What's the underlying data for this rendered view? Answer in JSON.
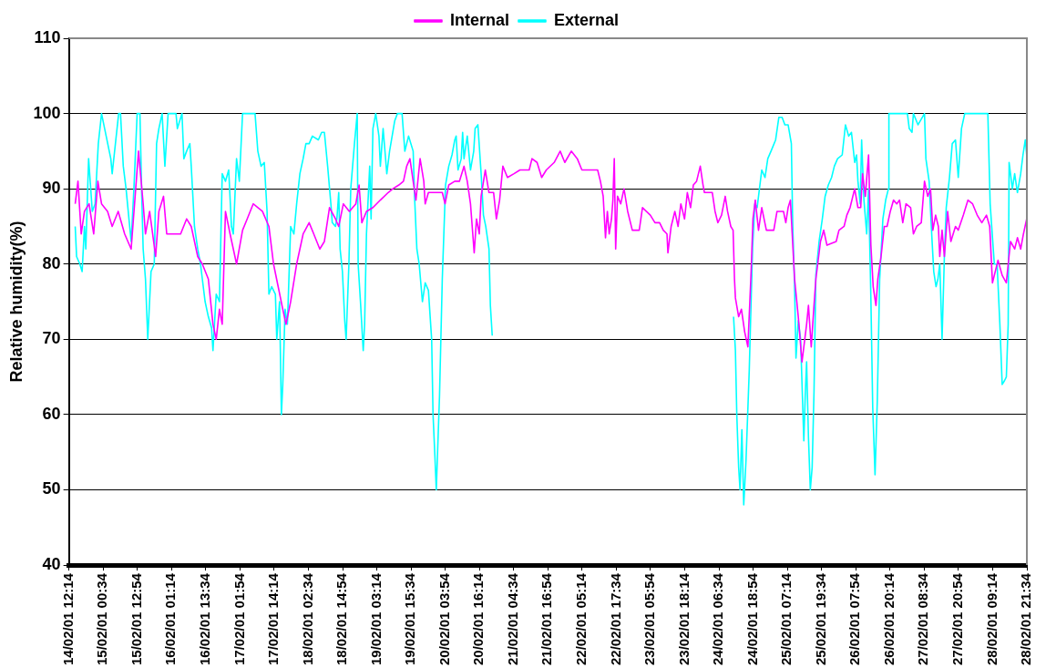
{
  "chart_data": {
    "type": "line",
    "ylabel": "Relative humidity(%)",
    "ylim": [
      40,
      110
    ],
    "yticks": [
      40,
      50,
      60,
      70,
      80,
      90,
      100,
      110
    ],
    "grid": "y",
    "legend": "top",
    "marker": "none",
    "line_style": "solid",
    "xlim": [
      "--02-14T12:14",
      "--02-28T21:34"
    ],
    "xticks": [
      {
        "value": "--02-14T12:14",
        "label": "14/02/01 12:14"
      },
      {
        "value": "--02-15T00:34",
        "label": "15/02/01 00:34"
      },
      {
        "value": "--02-15T12:54",
        "label": "15/02/01 12:54"
      },
      {
        "value": "--02-16T01:14",
        "label": "16/02/01 01:14"
      },
      {
        "value": "--02-16T13:34",
        "label": "16/02/01 13:34"
      },
      {
        "value": "--02-17T01:54",
        "label": "17/02/01 01:54"
      },
      {
        "value": "--02-17T14:14",
        "label": "17/02/01 14:14"
      },
      {
        "value": "--02-18T02:34",
        "label": "18/02/01 02:34"
      },
      {
        "value": "--02-18T14:54",
        "label": "18/02/01 14:54"
      },
      {
        "value": "--02-19T03:14",
        "label": "19/02/01 03:14"
      },
      {
        "value": "--02-19T15:34",
        "label": "19/02/01 15:34"
      },
      {
        "value": "--02-20T03:54",
        "label": "20/02/01 03:54"
      },
      {
        "value": "--02-20T16:14",
        "label": "20/02/01 16:14"
      },
      {
        "value": "--02-21T04:34",
        "label": "21/02/01 04:34"
      },
      {
        "value": "--02-21T16:54",
        "label": "21/02/01 16:54"
      },
      {
        "value": "--02-22T05:14",
        "label": "22/02/01 05:14"
      },
      {
        "value": "--02-22T17:34",
        "label": "22/02/01 17:34"
      },
      {
        "value": "--02-23T05:54",
        "label": "23/02/01 05:54"
      },
      {
        "value": "--02-23T18:14",
        "label": "23/02/01 18:14"
      },
      {
        "value": "--02-24T06:34",
        "label": "24/02/01 06:34"
      },
      {
        "value": "--02-24T18:54",
        "label": "24/02/01 18:54"
      },
      {
        "value": "--02-25T07:14",
        "label": "25/02/01 07:14"
      },
      {
        "value": "--02-25T19:34",
        "label": "25/02/01 19:34"
      },
      {
        "value": "--02-26T07:54",
        "label": "26/02/01 07:54"
      },
      {
        "value": "--02-26T20:14",
        "label": "26/02/01 20:14"
      },
      {
        "value": "--02-27T08:34",
        "label": "27/02/01 08:34"
      },
      {
        "value": "--02-27T20:54",
        "label": "27/02/01 20:54"
      },
      {
        "value": "--02-28T09:14",
        "label": "28/02/01 09:14"
      },
      {
        "value": "--02-28T21:34",
        "label": "28/02/01 21:34"
      }
    ],
    "series": [
      {
        "name": "Internal",
        "color": "#ff00ff",
        "x": [
          "--02-14T14:30",
          "--02-14T15:30",
          "--02-14T16:40",
          "--02-14T17:50",
          "--02-14T19:30",
          "--02-14T21:10",
          "--02-14T22:40",
          "--02-15T00:00",
          "--02-15T02:10",
          "--02-15T03:50",
          "--02-15T06:00",
          "--02-15T08:20",
          "--02-15T10:40",
          "--02-15T13:20",
          "--02-15T15:00",
          "--02-15T15:50",
          "--02-15T17:20",
          "--02-15T19:30",
          "--02-15T20:40",
          "--02-15T22:20",
          "--02-15T23:30",
          "--02-16T01:10",
          "--02-16T04:30",
          "--02-16T06:40",
          "--02-16T08:20",
          "--02-16T10:40",
          "--02-16T12:20",
          "--02-16T14:30",
          "--02-16T16:10",
          "--02-16T17:20",
          "--02-16T18:30",
          "--02-16T19:30",
          "--02-16T20:40",
          "--02-16T22:20",
          "--02-17T00:40",
          "--02-17T02:50",
          "--02-17T04:30",
          "--02-17T06:40",
          "--02-17T10:00",
          "--02-17T12:20",
          "--02-17T14:00",
          "--02-17T15:40",
          "--02-17T17:20",
          "--02-17T18:30",
          "--02-17T20:10",
          "--02-17T22:20",
          "--02-18T00:40",
          "--02-18T02:50",
          "--02-18T04:30",
          "--02-18T06:40",
          "--02-18T08:20",
          "--02-18T10:10",
          "--02-18T12:20",
          "--02-18T13:30",
          "--02-18T15:10",
          "--02-18T17:20",
          "--02-18T19:40",
          "--02-18T20:50",
          "--02-18T21:50",
          "--02-18T23:30",
          "--02-19T01:50",
          "--02-19T04:30",
          "--02-19T07:20",
          "--02-19T09:00",
          "--02-19T11:10",
          "--02-19T12:50",
          "--02-19T14:00",
          "--02-19T15:10",
          "--02-19T16:20",
          "--02-19T17:20",
          "--02-19T18:50",
          "--02-19T20:10",
          "--02-19T20:40",
          "--02-19T21:50",
          "--02-20T00:40",
          "--02-20T02:50",
          "--02-20T03:50",
          "--02-20T05:10",
          "--02-20T07:20",
          "--02-20T09:00",
          "--02-20T10:40",
          "--02-20T11:50",
          "--02-20T13:00",
          "--02-20T14:20",
          "--02-20T15:10",
          "--02-20T16:10",
          "--02-20T16:50",
          "--02-20T18:20",
          "--02-20T19:40",
          "--02-20T21:20",
          "--02-20T22:20",
          "--02-20T23:30",
          "--02-21T00:40",
          "--02-21T02:20",
          "--02-21T04:40",
          "--02-21T06:50",
          "--02-21T10:10",
          "--02-21T11:10",
          "--02-21T13:00",
          "--02-21T14:40",
          "--02-21T16:20",
          "--02-21T19:10",
          "--02-21T21:20",
          "--02-21T23:00",
          "--02-22T01:20",
          "--02-22T03:30",
          "--02-22T05:10",
          "--02-22T10:50",
          "--02-22T11:50",
          "--02-22T12:50",
          "--02-22T13:40",
          "--02-22T14:20",
          "--02-22T15:00",
          "--02-22T15:50",
          "--02-22T16:20",
          "--02-22T16:50",
          "--02-22T17:20",
          "--02-22T18:00",
          "--02-22T19:10",
          "--02-22T20:20",
          "--02-22T21:40",
          "--02-22T23:20",
          "--02-23T00:40",
          "--02-23T01:50",
          "--02-23T03:00",
          "--02-23T05:50",
          "--02-23T07:30",
          "--02-23T09:10",
          "--02-23T10:30",
          "--02-23T11:50",
          "--02-23T12:10",
          "--02-23T13:20",
          "--02-23T14:40",
          "--02-23T15:50",
          "--02-23T16:50",
          "--02-23T18:10",
          "--02-23T19:10",
          "--02-23T20:20",
          "--02-23T21:20",
          "--02-23T22:30",
          "--02-23T23:50",
          "--02-24T00:50",
          "--02-24T01:20",
          "--02-24T04:10",
          "--02-24T05:10",
          "--02-24T06:10",
          "--02-24T07:30",
          "--02-24T08:50",
          "--02-24T09:40",
          "--02-24T10:50",
          "--02-24T11:40",
          "--02-24T12:10",
          "--02-24T12:30",
          "--02-24T13:40",
          "--02-24T14:40",
          "--02-24T15:50",
          "--02-24T17:00",
          "--02-24T18:10",
          "--02-24T18:50",
          "--02-24T19:40",
          "--02-24T20:50",
          "--02-24T22:00",
          "--02-24T23:40",
          "--02-25T02:20",
          "--02-25T03:30",
          "--02-25T05:50",
          "--02-25T06:40",
          "--02-25T07:30",
          "--02-25T08:20",
          "--02-25T09:50",
          "--02-25T11:10",
          "--02-25T12:30",
          "--02-25T14:10",
          "--02-25T14:50",
          "--02-25T15:50",
          "--02-25T16:50",
          "--02-25T17:30",
          "--02-25T18:20",
          "--02-25T19:10",
          "--02-25T20:20",
          "--02-25T21:30",
          "--02-26T00:50",
          "--02-26T01:50",
          "--02-26T03:40",
          "--02-26T04:40",
          "--02-26T05:50",
          "--02-26T07:30",
          "--02-26T08:40",
          "--02-26T09:40",
          "--02-26T10:20",
          "--02-26T11:20",
          "--02-26T12:30",
          "--02-26T13:20",
          "--02-26T14:10",
          "--02-26T15:10",
          "--02-26T15:50",
          "--02-26T17:00",
          "--02-26T18:10",
          "--02-26T19:10",
          "--02-26T20:20",
          "--02-26T21:30",
          "--02-26T22:40",
          "--02-26T23:40",
          "--02-27T00:50",
          "--02-27T02:00",
          "--02-27T03:40",
          "--02-27T04:40",
          "--02-27T05:50",
          "--02-27T07:30",
          "--02-27T08:40",
          "--02-27T09:50",
          "--02-27T10:50",
          "--02-27T11:40",
          "--02-27T12:40",
          "--02-27T13:40",
          "--02-27T14:10",
          "--02-27T15:00",
          "--02-27T15:50",
          "--02-27T17:00",
          "--02-27T18:10",
          "--02-27T19:50",
          "--02-27T20:50",
          "--02-27T22:40",
          "--02-28T00:20",
          "--02-28T02:00",
          "--02-28T03:40",
          "--02-28T05:20",
          "--02-28T07:00",
          "--02-28T08:10",
          "--02-28T09:10",
          "--02-28T11:10",
          "--02-28T12:40",
          "--02-28T14:10",
          "--02-28T15:40",
          "--02-28T17:10",
          "--02-28T18:10",
          "--02-28T19:20",
          "--02-28T20:20",
          "--02-28T21:30"
        ],
        "values": [
          88,
          91,
          84,
          87,
          88,
          84,
          91,
          88,
          87,
          85,
          87,
          84,
          82,
          95,
          88,
          84,
          87,
          81,
          87,
          89,
          84,
          84,
          84,
          86,
          85,
          81,
          80,
          78,
          72,
          70,
          74,
          72,
          87,
          84,
          80,
          84.5,
          86,
          88,
          87,
          85,
          80,
          77,
          74,
          72,
          75,
          80,
          84,
          85.5,
          84,
          82,
          83,
          87.5,
          86,
          85,
          88,
          87,
          88,
          90.5,
          85.5,
          87,
          87.5,
          88.5,
          89.5,
          90,
          90.5,
          91,
          93,
          94,
          91,
          88.5,
          94,
          91,
          88,
          89.5,
          89.5,
          89.5,
          88,
          90.5,
          91,
          91,
          93,
          91,
          88,
          81.5,
          86,
          84,
          89,
          92.5,
          89.5,
          89.5,
          86,
          88.5,
          93,
          91.5,
          92,
          92.5,
          92.5,
          94,
          93.5,
          91.5,
          92.5,
          93.5,
          95,
          93.5,
          95,
          94,
          92.5,
          92.5,
          91,
          89,
          83.5,
          87,
          84,
          86,
          88.5,
          94,
          82,
          89,
          88,
          90,
          87,
          84.5,
          84.5,
          84.5,
          87.5,
          86.5,
          85.5,
          85.5,
          84.5,
          84,
          81.5,
          85,
          87,
          85,
          88,
          86,
          89.5,
          87.5,
          90.5,
          91,
          93,
          90.5,
          89.5,
          89.5,
          87,
          85.5,
          86.5,
          89,
          87,
          85,
          84.5,
          78,
          75.5,
          73,
          74,
          71,
          69,
          79,
          86,
          88.5,
          84.5,
          87.5,
          84.5,
          84.5,
          87,
          87,
          85.5,
          87.5,
          88.5,
          78,
          73,
          67,
          72,
          74.5,
          69,
          74.5,
          78,
          80.5,
          83,
          84.5,
          82.5,
          83,
          84.5,
          85,
          86.5,
          87.5,
          90,
          87.5,
          87.5,
          92,
          89,
          94.5,
          82.5,
          77,
          74.5,
          78,
          81,
          85,
          85,
          87,
          88.5,
          88,
          88.5,
          85.5,
          88,
          87.5,
          84,
          85,
          85.5,
          91,
          89,
          90,
          84.5,
          86.5,
          85,
          81,
          84.5,
          81,
          87,
          83,
          85,
          84.5,
          86.5,
          88.5,
          88,
          86.5,
          85.5,
          86.5,
          85,
          77.5,
          80.5,
          78.5,
          77.5,
          83,
          82,
          83.5,
          82,
          84,
          86
        ]
      },
      {
        "name": "External",
        "color": "#00ffff",
        "x": [
          "--02-14T14:30",
          "--02-14T15:00",
          "--02-14T16:10",
          "--02-14T17:00",
          "--02-14T17:50",
          "--02-14T18:20",
          "--02-14T19:20",
          "--02-14T20:40",
          "--02-14T21:40",
          "--02-14T22:50",
          "--02-15T00:00",
          "--02-15T01:40",
          "--02-15T03:20",
          "--02-15T03:50",
          "--02-15T05:00",
          "--02-15T06:10",
          "--02-15T06:50",
          "--02-15T07:50",
          "--02-15T08:50",
          "--02-15T10:40",
          "--02-15T11:40",
          "--02-15T12:50",
          "--02-15T13:50",
          "--02-15T14:30",
          "--02-15T15:00",
          "--02-15T15:50",
          "--02-15T16:40",
          "--02-15T17:50",
          "--02-15T19:00",
          "--02-15T19:50",
          "--02-15T20:40",
          "--02-15T21:50",
          "--02-15T22:50",
          "--02-16T00:00",
          "--02-16T02:50",
          "--02-16T03:20",
          "--02-16T05:00",
          "--02-16T05:40",
          "--02-16T06:40",
          "--02-16T07:50",
          "--02-16T08:20",
          "--02-16T09:30",
          "--02-16T10:40",
          "--02-16T11:40",
          "--02-16T12:20",
          "--02-16T13:20",
          "--02-16T14:30",
          "--02-16T15:40",
          "--02-16T16:10",
          "--02-16T17:20",
          "--02-16T18:30",
          "--02-16T19:30",
          "--02-16T20:40",
          "--02-16T21:50",
          "--02-16T22:50",
          "--02-16T23:30",
          "--02-17T00:40",
          "--02-17T01:40",
          "--02-17T02:50",
          "--02-17T05:00",
          "--02-17T07:20",
          "--02-17T08:20",
          "--02-17T09:30",
          "--02-17T10:40",
          "--02-17T11:40",
          "--02-17T12:20",
          "--02-17T13:20",
          "--02-17T14:40",
          "--02-17T15:10",
          "--02-17T16:10",
          "--02-17T16:50",
          "--02-17T17:20",
          "--02-17T18:10",
          "--02-17T19:00",
          "--02-17T20:10",
          "--02-17T21:20",
          "--02-17T22:20",
          "--02-17T23:30",
          "--02-18T00:40",
          "--02-18T01:40",
          "--02-18T02:50",
          "--02-18T04:00",
          "--02-18T06:10",
          "--02-18T07:20",
          "--02-18T08:20",
          "--02-18T09:30",
          "--02-18T10:40",
          "--02-18T11:10",
          "--02-18T12:20",
          "--02-18T12:50",
          "--02-18T13:30",
          "--02-18T14:00",
          "--02-18T14:50",
          "--02-18T15:40",
          "--02-18T16:10",
          "--02-18T17:10",
          "--02-18T17:50",
          "--02-18T19:10",
          "--02-18T20:10",
          "--02-18T20:30",
          "--02-18T21:20",
          "--02-18T22:20",
          "--02-18T22:50",
          "--02-18T23:30",
          "--02-19T00:40",
          "--02-19T01:10",
          "--02-19T01:50",
          "--02-19T02:50",
          "--02-19T04:00",
          "--02-19T04:30",
          "--02-19T05:30",
          "--02-19T06:50",
          "--02-19T07:50",
          "--02-19T09:40",
          "--02-19T10:40",
          "--02-19T12:20",
          "--02-19T13:20",
          "--02-19T14:40",
          "--02-19T16:20",
          "--02-19T16:50",
          "--02-19T17:40",
          "--02-19T18:30",
          "--02-19T19:40",
          "--02-19T20:40",
          "--02-19T21:50",
          "--02-19T23:00",
          "--02-19T23:30",
          "--02-20T00:10",
          "--02-20T00:40",
          "--02-20T01:50",
          "--02-20T02:50",
          "--02-20T04:00",
          "--02-20T05:10",
          "--02-20T06:20",
          "--02-20T07:20",
          "--02-20T07:50",
          "--02-20T08:30",
          "--02-20T09:40",
          "--02-20T10:10",
          "--02-20T10:40",
          "--02-20T11:50",
          "--02-20T13:00",
          "--02-20T14:10",
          "--02-20T14:40",
          "--02-20T15:40",
          "--02-20T16:50",
          "--02-20T17:40",
          "--02-20T18:30",
          "--02-20T19:40",
          "--02-20T20:10",
          "--02-20T20:50",
          "--02-22T12:00",
          "--02-24T11:50",
          "--02-24T12:30",
          "--02-24T13:00",
          "--02-24T13:40",
          "--02-24T14:10",
          "--02-24T14:50",
          "--02-24T15:30",
          "--02-24T16:20",
          "--02-24T17:30",
          "--02-24T18:40",
          "--02-24T19:30",
          "--02-24T20:20",
          "--02-24T21:10",
          "--02-24T22:00",
          "--02-24T23:10",
          "--02-25T00:10",
          "--02-25T01:20",
          "--02-25T03:00",
          "--02-25T04:10",
          "--02-25T05:20",
          "--02-25T06:20",
          "--02-25T07:30",
          "--02-25T08:40",
          "--02-25T09:10",
          "--02-25T09:50",
          "--02-25T10:20",
          "--02-25T11:10",
          "--02-25T12:00",
          "--02-25T13:10",
          "--02-25T13:40",
          "--02-25T14:10",
          "--02-25T14:50",
          "--02-25T15:30",
          "--02-25T16:10",
          "--02-25T16:50",
          "--02-25T17:30",
          "--02-25T18:40",
          "--02-25T19:50",
          "--02-25T20:50",
          "--02-25T22:00",
          "--02-25T23:10",
          "--02-26T00:10",
          "--02-26T01:20",
          "--02-26T03:00",
          "--02-26T04:10",
          "--02-26T05:20",
          "--02-26T06:20",
          "--02-26T07:30",
          "--02-26T08:10",
          "--02-26T08:40",
          "--02-26T09:30",
          "--02-26T10:00",
          "--02-26T10:50",
          "--02-26T11:50",
          "--02-26T12:30",
          "--02-26T13:20",
          "--02-26T14:00",
          "--02-26T14:50",
          "--02-26T15:40",
          "--02-26T16:30",
          "--02-26T17:40",
          "--02-26T18:40",
          "--02-26T19:40",
          "--02-26T19:50",
          "--02-27T02:30",
          "--02-27T03:10",
          "--02-27T04:10",
          "--02-27T04:40",
          "--02-27T06:20",
          "--02-27T08:40",
          "--02-27T09:10",
          "--02-27T10:20",
          "--02-27T11:20",
          "--02-27T12:00",
          "--02-27T12:50",
          "--02-27T13:30",
          "--02-27T14:10",
          "--02-27T15:00",
          "--02-27T15:50",
          "--02-27T16:30",
          "--02-27T17:40",
          "--02-27T18:40",
          "--02-27T19:50",
          "--02-27T20:50",
          "--02-27T22:00",
          "--02-27T23:10",
          "--02-28T07:30",
          "--02-28T08:20",
          "--02-28T09:50",
          "--02-28T10:50",
          "--02-28T11:50",
          "--02-28T12:40",
          "--02-28T13:30",
          "--02-28T14:10",
          "--02-28T14:50",
          "--02-28T15:10",
          "--02-28T16:20",
          "--02-28T17:10",
          "--02-28T18:10",
          "--02-28T19:20",
          "--02-28T20:10",
          "--02-28T21:00",
          "--02-28T21:30"
        ],
        "values": [
          85,
          81,
          80,
          79,
          85,
          82,
          94,
          87,
          88,
          96,
          100,
          97,
          94,
          92,
          96,
          100,
          100,
          93,
          90,
          83,
          90,
          100,
          100,
          89,
          82,
          78,
          70,
          79,
          80,
          96,
          98,
          100,
          93,
          100,
          100,
          98,
          100,
          94,
          95,
          96,
          93,
          85,
          82,
          80,
          78,
          75,
          73,
          71.5,
          68.5,
          76,
          75,
          92,
          91,
          92.5,
          85,
          84,
          94,
          91,
          100,
          100,
          100,
          95,
          93,
          93.5,
          87,
          76,
          77,
          76,
          70,
          75,
          60,
          64,
          74,
          72,
          85,
          84,
          88,
          92,
          94,
          96,
          96,
          97,
          96.5,
          97.5,
          97.5,
          93,
          88,
          85.5,
          85,
          86,
          89.5,
          82,
          79,
          72.5,
          70,
          80,
          90,
          96,
          100,
          80,
          75,
          68.5,
          72,
          84,
          93,
          86,
          98,
          100,
          97,
          93,
          98,
          92,
          95,
          99,
          100,
          100,
          95,
          97,
          95,
          89,
          82,
          80,
          75,
          77.5,
          76.5,
          70,
          60,
          54.5,
          50,
          62.5,
          78,
          90.5,
          93,
          94.5,
          96.5,
          97,
          92.5,
          94,
          97.5,
          94,
          97,
          92.5,
          95,
          98,
          98.5,
          92,
          86.5,
          85,
          82,
          74.5,
          70.5,
          null,
          73,
          68.5,
          60,
          53,
          50,
          58,
          48,
          54,
          66,
          82,
          88,
          87.5,
          90,
          92.5,
          91.5,
          94,
          95,
          96.5,
          99.5,
          99.5,
          98.5,
          98.5,
          96,
          85,
          77,
          67.5,
          72.5,
          70,
          56.5,
          62.5,
          67,
          57,
          50,
          53,
          63,
          78.5,
          83,
          86,
          89,
          90.5,
          91.5,
          93,
          94,
          94.5,
          98.5,
          97,
          97.5,
          93.5,
          94.5,
          91,
          88,
          96.5,
          88.5,
          84,
          90,
          75.5,
          61,
          52,
          62,
          78,
          86,
          88.5,
          90,
          100,
          100,
          98,
          97.5,
          100,
          98.5,
          100,
          94,
          91,
          83.5,
          79,
          77,
          78,
          80,
          70,
          81,
          87.5,
          91.5,
          96,
          96.5,
          91.5,
          98,
          100,
          100,
          88,
          80,
          80,
          72,
          64,
          64.5,
          65,
          72,
          93.5,
          90,
          92,
          89.5,
          92,
          94.5,
          96.5,
          94.5
        ]
      }
    ]
  }
}
